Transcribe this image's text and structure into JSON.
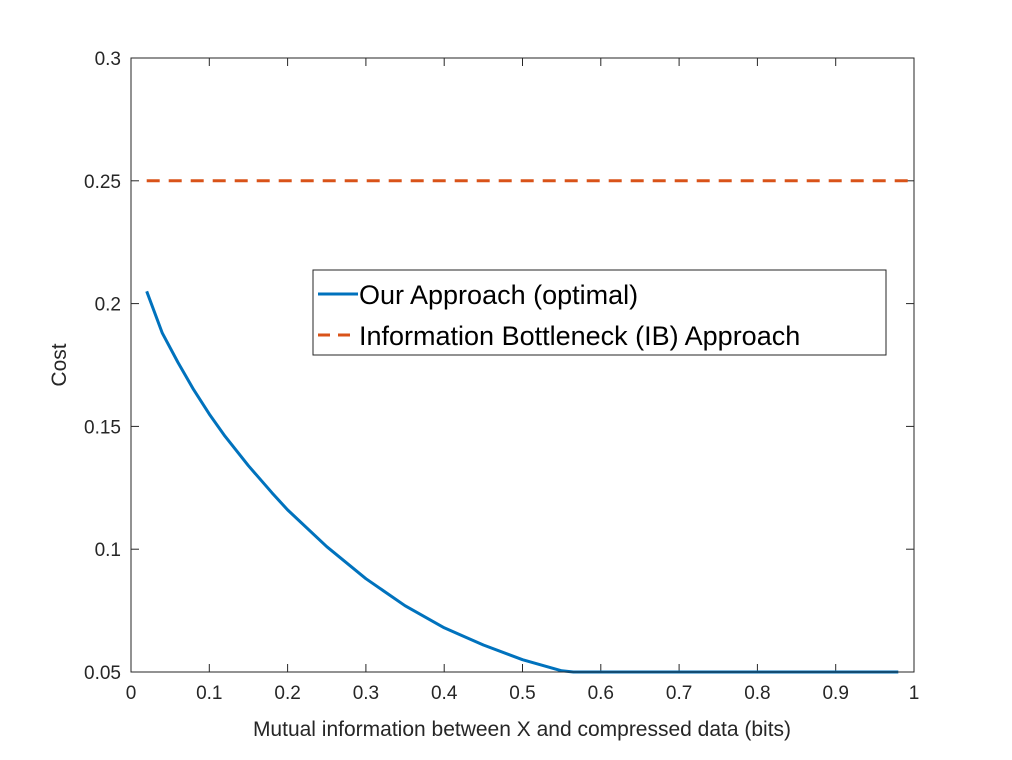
{
  "chart_data": {
    "type": "line",
    "title": "",
    "xlabel": "Mutual information between X and compressed data (bits)",
    "ylabel": "Cost",
    "xlim": [
      0,
      1
    ],
    "ylim": [
      0.05,
      0.3
    ],
    "xticks": [
      "0",
      "0.1",
      "0.2",
      "0.3",
      "0.4",
      "0.5",
      "0.6",
      "0.7",
      "0.8",
      "0.9",
      "1"
    ],
    "yticks": [
      "0.05",
      "0.1",
      "0.15",
      "0.2",
      "0.25",
      "0.3"
    ],
    "grid": false,
    "legend_position": "center-right",
    "series": [
      {
        "name": "Our Approach (optimal)",
        "style": "solid",
        "color": "#0072BD",
        "x": [
          0.02,
          0.04,
          0.06,
          0.08,
          0.1,
          0.12,
          0.15,
          0.18,
          0.2,
          0.25,
          0.3,
          0.35,
          0.4,
          0.45,
          0.5,
          0.55,
          0.565,
          0.6,
          0.7,
          0.8,
          0.9,
          0.98
        ],
        "y": [
          0.205,
          0.188,
          0.176,
          0.165,
          0.155,
          0.146,
          0.134,
          0.123,
          0.116,
          0.101,
          0.088,
          0.077,
          0.068,
          0.061,
          0.055,
          0.0505,
          0.05,
          0.05,
          0.05,
          0.05,
          0.05,
          0.05
        ]
      },
      {
        "name": "Information Bottleneck (IB) Approach",
        "style": "dashed",
        "color": "#D95319",
        "x": [
          0.02,
          0.15,
          0.3,
          0.45,
          0.6,
          0.75,
          0.9,
          1.0
        ],
        "y": [
          0.25,
          0.25,
          0.25,
          0.25,
          0.25,
          0.25,
          0.25,
          0.25
        ]
      }
    ]
  }
}
